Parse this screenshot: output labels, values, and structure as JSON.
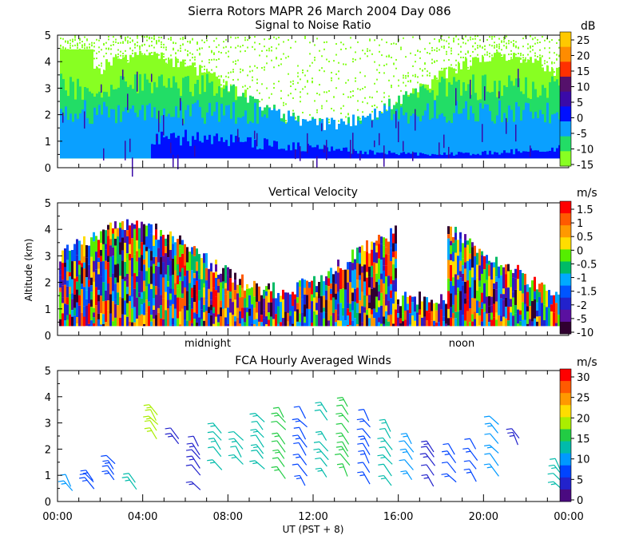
{
  "title": "Sierra Rotors  MAPR 26 March 2004 Day 086",
  "xlabel": "UT  (PST + 8)",
  "chart_data": [
    {
      "type": "heatmap",
      "title": "Signal to Noise Ratio",
      "ylabel": "",
      "ylim": [
        0,
        5
      ],
      "yticks": [
        "0",
        "1",
        "2",
        "3",
        "4",
        "5"
      ],
      "xlim": [
        0,
        24
      ],
      "colorbar_unit": "dB",
      "colorbar_labels": [
        "25",
        "20",
        "15",
        "10",
        "5",
        "0",
        "-5",
        "-10",
        "-15"
      ],
      "colors": [
        "#ffc800",
        "#ff8c00",
        "#ff3000",
        "#55116b",
        "#3a0aa8",
        "#0010ff",
        "#0aa0ff",
        "#22dd66",
        "#88ff22"
      ],
      "data_bottom_km": 0.35
    },
    {
      "type": "heatmap",
      "title": "Vertical Velocity",
      "ylabel": "Altitude (km)",
      "ylim": [
        0,
        5
      ],
      "yticks": [
        "0",
        "1",
        "2",
        "3",
        "4",
        "5"
      ],
      "xlim": [
        0,
        24
      ],
      "annotations": [
        "midnight",
        "noon"
      ],
      "colorbar_unit": "m/s",
      "colorbar_labels": [
        "1.5",
        "1",
        "0.5",
        "0",
        "-0.5",
        "-1",
        "-1.5",
        "-2",
        "-5",
        "-10"
      ],
      "colors": [
        "#ff0000",
        "#ff5a00",
        "#ff9900",
        "#ffdd00",
        "#55ee00",
        "#00bb66",
        "#00aaff",
        "#0055ff",
        "#2222cc",
        "#5a10a0",
        "#300030"
      ],
      "data_bottom_km": 0.35
    },
    {
      "type": "scatter",
      "title": "FCA Hourly Averaged Winds",
      "ylabel": "",
      "ylim": [
        0,
        5
      ],
      "yticks": [
        "0",
        "1",
        "2",
        "3",
        "4",
        "5"
      ],
      "xlim": [
        0,
        24
      ],
      "xticks": [
        "00:00",
        "04:00",
        "08:00",
        "12:00",
        "16:00",
        "20:00",
        "00:00"
      ],
      "colorbar_unit": "m/s",
      "colorbar_labels": [
        "30",
        "25",
        "20",
        "15",
        "10",
        "5",
        "0"
      ],
      "colors": [
        "#ff0000",
        "#ff5a00",
        "#ff9900",
        "#ffdd00",
        "#aaee00",
        "#22cc44",
        "#00bbaa",
        "#0099ff",
        "#0044ff",
        "#2222cc",
        "#4a0a80"
      ],
      "barbs": [
        {
          "hour": 0,
          "levels": [
            0.6,
            0.8
          ],
          "speed": 9
        },
        {
          "hour": 1,
          "levels": [
            0.7,
            0.9,
            1.0
          ],
          "speed": 5
        },
        {
          "hour": 2,
          "levels": [
            1.0,
            1.2,
            1.4,
            1.6
          ],
          "speed": 6
        },
        {
          "hour": 3,
          "levels": [
            0.7,
            0.9
          ],
          "speed": 13
        },
        {
          "hour": 4,
          "levels": [
            2.6,
            2.9,
            3.1,
            3.3,
            3.5
          ],
          "speed": 17
        },
        {
          "hour": 5,
          "levels": [
            2.4,
            2.6
          ],
          "speed": 3
        },
        {
          "hour": 6,
          "levels": [
            0.6,
            1.2,
            1.5,
            1.8,
            2.0,
            2.3
          ],
          "speed": 4
        },
        {
          "hour": 7,
          "levels": [
            1.4,
            1.9,
            2.2,
            2.5,
            2.8
          ],
          "speed": 11
        },
        {
          "hour": 8,
          "levels": [
            1.6,
            1.9,
            2.2,
            2.5
          ],
          "speed": 11
        },
        {
          "hour": 9,
          "levels": [
            1.4,
            1.8,
            2.0,
            2.3,
            2.6,
            2.9,
            3.2
          ],
          "speed": 13
        },
        {
          "hour": 10,
          "levels": [
            1.1,
            1.5,
            1.8,
            2.1,
            2.4,
            2.9,
            3.2,
            3.4
          ],
          "speed": 15
        },
        {
          "hour": 11,
          "levels": [
            0.8,
            1.2,
            1.6,
            2.0,
            2.3,
            2.6,
            3.0,
            3.4
          ],
          "speed": 6
        },
        {
          "hour": 12,
          "levels": [
            1.1,
            1.5,
            1.8,
            2.1,
            2.5,
            3.3,
            3.6
          ],
          "speed": 12
        },
        {
          "hour": 13,
          "levels": [
            1.2,
            1.6,
            1.9,
            2.1,
            2.4,
            2.8,
            3.2,
            3.5,
            3.8
          ],
          "speed": 14
        },
        {
          "hour": 14,
          "levels": [
            0.9,
            1.3,
            1.7,
            2.0,
            2.3,
            2.6,
            3.0,
            3.3
          ],
          "speed": 6
        },
        {
          "hour": 15,
          "levels": [
            0.8,
            1.2,
            1.6,
            1.9,
            2.2,
            2.6,
            2.9
          ],
          "speed": 12
        },
        {
          "hour": 16,
          "levels": [
            1.0,
            1.4,
            1.8,
            2.1,
            2.4
          ],
          "speed": 10
        },
        {
          "hour": 17,
          "levels": [
            0.8,
            1.2,
            1.6,
            1.9,
            2.1
          ],
          "speed": 4
        },
        {
          "hour": 18,
          "levels": [
            0.9,
            1.3,
            1.7,
            2.0
          ],
          "speed": 5
        },
        {
          "hour": 19,
          "levels": [
            1.0,
            1.4,
            1.8,
            2.2
          ],
          "speed": 7
        },
        {
          "hour": 20,
          "levels": [
            1.2,
            1.6,
            2.0,
            2.4,
            2.8,
            3.1
          ],
          "speed": 9
        },
        {
          "hour": 21,
          "levels": [
            2.4,
            2.6
          ],
          "speed": 4
        },
        {
          "hour": 23,
          "levels": [
            0.6,
            0.9,
            1.2,
            1.4
          ],
          "speed": 13
        }
      ]
    }
  ]
}
